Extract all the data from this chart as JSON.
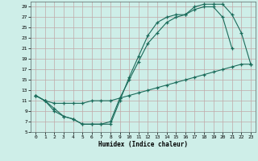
{
  "xlabel": "Humidex (Indice chaleur)",
  "bg_color": "#ceeee8",
  "grid_color": "#c0a8a8",
  "line_color": "#1a6b5a",
  "xlim": [
    -0.5,
    23.5
  ],
  "ylim": [
    5,
    30
  ],
  "xticks": [
    0,
    1,
    2,
    3,
    4,
    5,
    6,
    7,
    8,
    9,
    10,
    11,
    12,
    13,
    14,
    15,
    16,
    17,
    18,
    19,
    20,
    21,
    22,
    23
  ],
  "yticks": [
    5,
    7,
    9,
    11,
    13,
    15,
    17,
    19,
    21,
    23,
    25,
    27,
    29
  ],
  "line1_x": [
    0,
    1,
    2,
    3,
    4,
    5,
    6,
    7,
    8,
    9,
    10,
    11,
    12,
    13,
    14,
    15,
    16,
    17,
    18,
    19,
    20,
    21,
    22,
    23
  ],
  "line1_y": [
    12,
    11,
    9,
    8,
    7.5,
    6.5,
    6.5,
    6.5,
    6.5,
    11,
    15.5,
    19.5,
    23.5,
    26,
    27,
    27.5,
    27.5,
    29,
    29.5,
    29.5,
    29.5,
    27.5,
    24,
    18
  ],
  "line2_x": [
    0,
    1,
    2,
    3,
    4,
    5,
    6,
    7,
    8,
    9,
    10,
    11,
    12,
    13,
    14,
    15,
    16,
    17,
    18,
    19,
    20,
    21
  ],
  "line2_y": [
    12,
    11,
    9.5,
    8,
    7.5,
    6.5,
    6.5,
    6.5,
    7,
    11.5,
    15,
    18.5,
    22,
    24,
    26,
    27,
    27.5,
    28.5,
    29,
    29,
    27,
    21
  ],
  "line3_x": [
    0,
    1,
    2,
    3,
    4,
    5,
    6,
    7,
    8,
    9,
    10,
    11,
    12,
    13,
    14,
    15,
    16,
    17,
    18,
    19,
    20,
    21,
    22,
    23
  ],
  "line3_y": [
    12,
    11,
    10.5,
    10.5,
    10.5,
    10.5,
    11,
    11,
    11,
    11.5,
    12,
    12.5,
    13,
    13.5,
    14,
    14.5,
    15,
    15.5,
    16,
    16.5,
    17,
    17.5,
    18,
    18
  ]
}
